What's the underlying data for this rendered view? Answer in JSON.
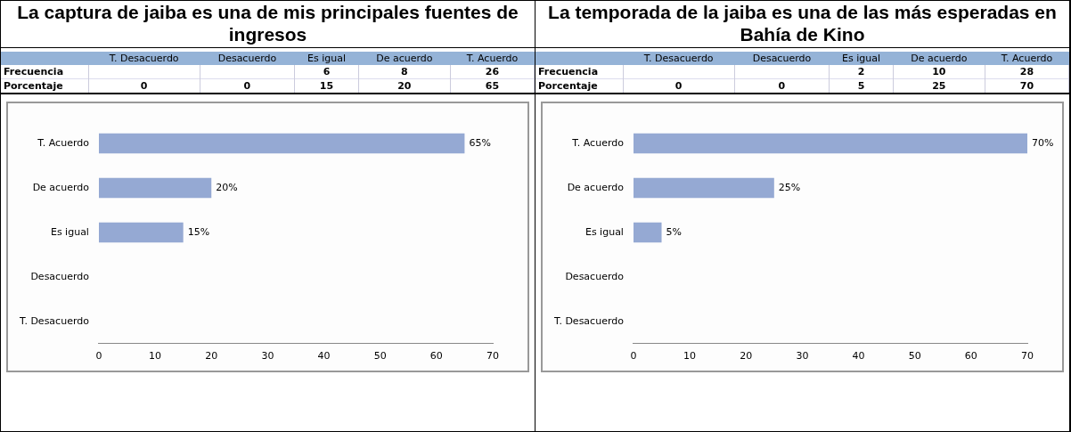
{
  "chart_data": [
    {
      "type": "other",
      "title": "La captura de jaiba es una de mis principales fuentes de ingresos",
      "categories": [
        "T. Desacuerdo",
        "Desacuerdo",
        "Es igual",
        "De acuerdo",
        "T. Acuerdo"
      ],
      "data_labels": true,
      "series": [
        {
          "name": "Frecuencia",
          "values": [
            null,
            null,
            6,
            8,
            26
          ]
        },
        {
          "name": "Porcentaje",
          "values": [
            0,
            0,
            15,
            20,
            65
          ]
        }
      ]
    },
    {
      "type": "bar",
      "orientation": "horizontal",
      "categories": [
        "T. Acuerdo",
        "De acuerdo",
        "Es igual",
        "Desacuerdo",
        "T. Desacuerdo"
      ],
      "values": [
        65,
        20,
        15,
        0,
        0
      ],
      "value_labels": [
        "65%",
        "20%",
        "15%",
        null,
        null
      ],
      "color": "#95a9d3",
      "xlim": [
        0,
        70
      ],
      "xticks": [
        0,
        10,
        20,
        30,
        40,
        50,
        60,
        70
      ]
    },
    {
      "type": "other",
      "title": "La temporada de la jaiba es una de las más esperadas en Bahía de Kino",
      "categories": [
        "T. Desacuerdo",
        "Desacuerdo",
        "Es igual",
        "De acuerdo",
        "T. Acuerdo"
      ],
      "data_labels": true,
      "series": [
        {
          "name": "Frecuencia",
          "values": [
            null,
            null,
            2,
            10,
            28
          ]
        },
        {
          "name": "Porcentaje",
          "values": [
            0,
            0,
            5,
            25,
            70
          ]
        }
      ]
    },
    {
      "type": "bar",
      "orientation": "horizontal",
      "categories": [
        "T. Acuerdo",
        "De acuerdo",
        "Es igual",
        "Desacuerdo",
        "T. Desacuerdo"
      ],
      "values": [
        70,
        25,
        5,
        0,
        0
      ],
      "value_labels": [
        "70%",
        "25%",
        "5%",
        null,
        null
      ],
      "color": "#95a9d3",
      "xlim": [
        0,
        70
      ],
      "xticks": [
        0,
        10,
        20,
        30,
        40,
        50,
        60,
        70
      ]
    }
  ]
}
